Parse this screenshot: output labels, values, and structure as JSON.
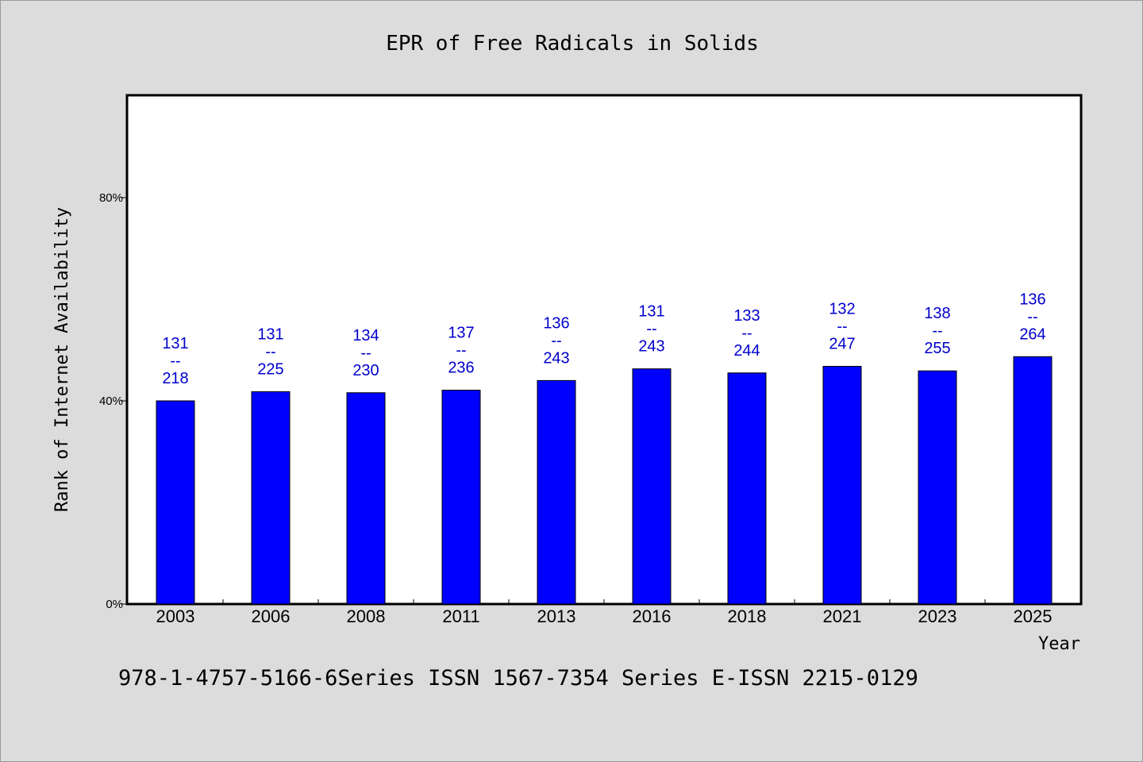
{
  "chart_data": {
    "type": "bar",
    "title": "EPR of Free Radicals in Solids",
    "xlabel": "Year",
    "ylabel": "Rank of Internet Availability",
    "categories": [
      "2003",
      "2006",
      "2008",
      "2011",
      "2013",
      "2016",
      "2018",
      "2021",
      "2023",
      "2025"
    ],
    "series": [
      {
        "values": [
          0.4,
          0.418,
          0.416,
          0.421,
          0.44,
          0.463,
          0.455,
          0.468,
          0.459,
          0.487
        ],
        "color": "#0000ff"
      }
    ],
    "data_labels": [
      [
        "131",
        "--",
        "218"
      ],
      [
        "131",
        "--",
        "225"
      ],
      [
        "134",
        "--",
        "230"
      ],
      [
        "137",
        "--",
        "236"
      ],
      [
        "136",
        "--",
        "243"
      ],
      [
        "131",
        "--",
        "243"
      ],
      [
        "133",
        "--",
        "244"
      ],
      [
        "132",
        "--",
        "247"
      ],
      [
        "138",
        "--",
        "255"
      ],
      [
        "136",
        "--",
        "264"
      ]
    ],
    "ylim": [
      0,
      1.0
    ],
    "yticks": [
      {
        "value": 0.0,
        "label": "0%"
      },
      {
        "value": 0.4,
        "label": "40%"
      },
      {
        "value": 0.8,
        "label": "80%"
      }
    ],
    "grid": false,
    "label_color": "#0000cc",
    "background": "#dcdcdc",
    "plot_background": "#ffffff"
  },
  "footer": {
    "text": "978-1-4757-5166-6Series ISSN 1567-7354 Series E-ISSN 2215-0129"
  }
}
